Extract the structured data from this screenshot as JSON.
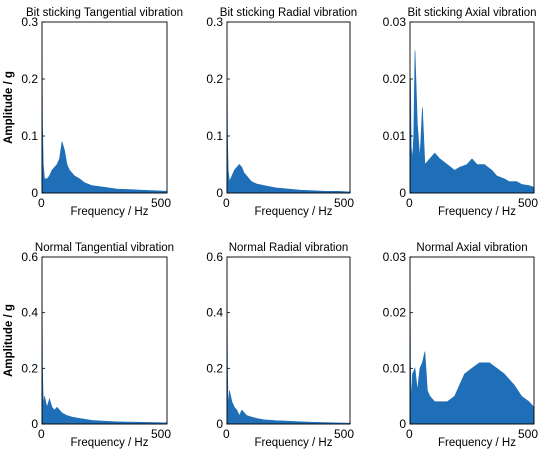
{
  "colors": {
    "series": "#1f6fb8",
    "axis": "#000000"
  },
  "chart_data": [
    {
      "type": "area",
      "title": "Bit sticking Tangential vibration",
      "xlabel": "Frequency / Hz",
      "ylabel": "Amplitude / g",
      "xlim": [
        0,
        500
      ],
      "ylim": [
        0,
        0.3
      ],
      "xticks": [
        "0",
        "500"
      ],
      "yticks": [
        "0",
        "0.1",
        "0.2",
        "0.3"
      ],
      "grid": false,
      "series": [
        {
          "x": [
            0,
            2,
            5,
            10,
            20,
            30,
            40,
            50,
            60,
            70,
            80,
            90,
            100,
            110,
            120,
            130,
            150,
            170,
            200,
            250,
            300,
            350,
            400,
            450,
            500
          ],
          "values": [
            0.29,
            0.12,
            0.05,
            0.025,
            0.025,
            0.03,
            0.04,
            0.045,
            0.05,
            0.06,
            0.09,
            0.075,
            0.05,
            0.04,
            0.035,
            0.03,
            0.025,
            0.018,
            0.013,
            0.01,
            0.007,
            0.006,
            0.005,
            0.004,
            0.003
          ]
        }
      ]
    },
    {
      "type": "area",
      "title": "Bit sticking Radial vibration",
      "xlabel": "Frequency / Hz",
      "ylabel": "",
      "xlim": [
        0,
        500
      ],
      "ylim": [
        0,
        0.3
      ],
      "xticks": [
        "0",
        "500"
      ],
      "yticks": [
        "0",
        "0.1",
        "0.2",
        "0.3"
      ],
      "grid": false,
      "series": [
        {
          "x": [
            0,
            2,
            5,
            10,
            20,
            30,
            40,
            50,
            60,
            70,
            80,
            90,
            100,
            120,
            150,
            200,
            250,
            300,
            350,
            400,
            450,
            500
          ],
          "values": [
            0.26,
            0.1,
            0.04,
            0.02,
            0.03,
            0.04,
            0.045,
            0.05,
            0.045,
            0.035,
            0.03,
            0.025,
            0.02,
            0.016,
            0.013,
            0.009,
            0.007,
            0.005,
            0.004,
            0.003,
            0.003,
            0.002
          ]
        }
      ]
    },
    {
      "type": "area",
      "title": "Bit sticking Axial vibration",
      "xlabel": "Frequency / Hz",
      "ylabel": "",
      "xlim": [
        0,
        500
      ],
      "ylim": [
        0,
        0.03
      ],
      "xticks": [
        "0",
        "500"
      ],
      "yticks": [
        "0",
        "0.01",
        "0.02",
        "0.03"
      ],
      "grid": false,
      "series": [
        {
          "x": [
            0,
            2,
            5,
            10,
            15,
            20,
            30,
            40,
            50,
            60,
            80,
            100,
            120,
            150,
            180,
            200,
            230,
            250,
            270,
            300,
            330,
            350,
            380,
            400,
            430,
            450,
            480,
            500
          ],
          "values": [
            0.014,
            0.02,
            0.008,
            0.006,
            0.01,
            0.025,
            0.012,
            0.006,
            0.015,
            0.005,
            0.006,
            0.007,
            0.006,
            0.005,
            0.004,
            0.0045,
            0.005,
            0.006,
            0.005,
            0.005,
            0.004,
            0.003,
            0.0025,
            0.002,
            0.002,
            0.0015,
            0.0013,
            0.001
          ]
        }
      ]
    },
    {
      "type": "area",
      "title": "Normal Tangential vibration",
      "xlabel": "Frequency / Hz",
      "ylabel": "Amplitude / g",
      "xlim": [
        0,
        500
      ],
      "ylim": [
        0,
        0.6
      ],
      "xticks": [
        "0",
        "500"
      ],
      "yticks": [
        "0",
        "0.2",
        "0.4",
        "0.6"
      ],
      "grid": false,
      "series": [
        {
          "x": [
            0,
            2,
            5,
            10,
            20,
            30,
            40,
            50,
            60,
            70,
            80,
            100,
            120,
            150,
            200,
            250,
            300,
            350,
            400,
            450,
            500
          ],
          "values": [
            0.56,
            0.2,
            0.07,
            0.1,
            0.06,
            0.09,
            0.06,
            0.05,
            0.06,
            0.05,
            0.04,
            0.03,
            0.025,
            0.02,
            0.013,
            0.01,
            0.008,
            0.007,
            0.006,
            0.005,
            0.004
          ]
        }
      ]
    },
    {
      "type": "area",
      "title": "Normal Radial vibration",
      "xlabel": "Frequency / Hz",
      "ylabel": "",
      "xlim": [
        0,
        500
      ],
      "ylim": [
        0,
        0.6
      ],
      "xticks": [
        "0",
        "500"
      ],
      "yticks": [
        "0",
        "0.2",
        "0.4",
        "0.6"
      ],
      "grid": false,
      "series": [
        {
          "x": [
            0,
            2,
            5,
            10,
            20,
            30,
            40,
            50,
            60,
            80,
            100,
            120,
            150,
            200,
            250,
            300,
            350,
            400,
            450,
            500
          ],
          "values": [
            0.53,
            0.2,
            0.06,
            0.12,
            0.08,
            0.06,
            0.05,
            0.03,
            0.05,
            0.03,
            0.025,
            0.02,
            0.015,
            0.012,
            0.01,
            0.008,
            0.006,
            0.005,
            0.004,
            0.003
          ]
        }
      ]
    },
    {
      "type": "area",
      "title": "Normal Axial vibration",
      "xlabel": "Frequency / Hz",
      "ylabel": "",
      "xlim": [
        0,
        500
      ],
      "ylim": [
        0,
        0.03
      ],
      "xticks": [
        "0",
        "500"
      ],
      "yticks": [
        "0",
        "0.01",
        "0.02",
        "0.03"
      ],
      "grid": false,
      "series": [
        {
          "x": [
            0,
            2,
            5,
            10,
            20,
            30,
            40,
            50,
            60,
            70,
            80,
            100,
            120,
            150,
            180,
            200,
            220,
            250,
            280,
            300,
            320,
            350,
            380,
            400,
            420,
            450,
            480,
            500
          ],
          "values": [
            0.03,
            0.011,
            0.004,
            0.009,
            0.01,
            0.006,
            0.01,
            0.011,
            0.013,
            0.006,
            0.005,
            0.004,
            0.004,
            0.004,
            0.005,
            0.007,
            0.009,
            0.01,
            0.011,
            0.011,
            0.011,
            0.01,
            0.009,
            0.008,
            0.007,
            0.005,
            0.004,
            0.003
          ]
        }
      ]
    }
  ]
}
